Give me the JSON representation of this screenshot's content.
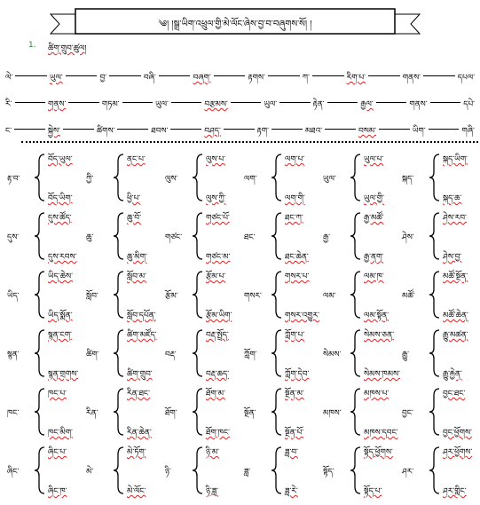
{
  "header": {
    "title": "༄། །སྒྲ་ཡིག་འཕྲུལ་གྱི་མེ་ལོང་ཞེས་བྱ་བ་བཞུགས་སོ། །",
    "number": "1.",
    "subtitle": "ཚིག་གྲུབ་ཚུལ།"
  },
  "chains": [
    [
      "ལེ་",
      "ཡུལ་",
      "བྱ་",
      "བཞི་",
      "བཞག་",
      "རྟགས་",
      "ཀ་",
      "རིག་པ་",
      "གནས་",
      "དཔལ་"
    ],
    [
      "རི་",
      "གནས་",
      "གཏམ་",
      "ཡུལ་",
      "བརྩམས་",
      "ཡུལ་",
      "རྟེན་",
      "རྒྱལ་",
      "གནས་",
      "དཔེ་"
    ],
    [
      "ང་",
      "སྐྱེས་",
      "ཚིགས་",
      "ཐབས་",
      "བཤད་",
      "རྟག་",
      "མཐའ་",
      "བསམ་",
      "ཡིག་",
      "གཞི་"
    ]
  ],
  "groups": [
    [
      [
        "རྟ་བ་",
        "བོད་ཡུལ་",
        "བོད་ཡིག་"
      ],
      [
        "ཀྱི་",
        "ནང་པ་",
        "ཕྱི་པ་"
      ],
      [
        "ལུས་",
        "ལུས་པ་",
        "ལུས་ཀྱི་"
      ],
      [
        "ལག་",
        "ལག་པ་",
        "ལག་གི་"
      ],
      [
        "ཡུལ་",
        "ཡུལ་པ་",
        "ཡུལ་གྱི་"
      ],
      [
        "སྐད་",
        "སྐད་ཡིག་",
        "སྐད་ཆ་"
      ]
    ],
    [
      [
        "དུས་",
        "དུས་ཚོད་",
        "དུས་རབས་"
      ],
      [
        "ཆུ་",
        "ཆུ་བོ་",
        "ཆུ་མིག་"
      ],
      [
        "གཙང་",
        "གཙང་པོ་",
        "གཙང་མ་"
      ],
      [
        "ཐང་",
        "ཐང་ཀ་",
        "ཐང་ཆེན་"
      ],
      [
        "རྒྱ་",
        "རྒྱ་མཚོ་",
        "རྒྱ་ནག་"
      ],
      [
        "ཤེས་",
        "ཤེས་རབ་",
        "ཤེས་བྱ་"
      ]
    ],
    [
      [
        "ཡིད་",
        "ཡིད་ཆེས་",
        "ཡིད་སྨོན་"
      ],
      [
        "སློབ་",
        "སློབ་མ་",
        "སློབ་དཔོན་"
      ],
      [
        "རྩོམ་",
        "རྩོམ་པ་",
        "རྩོམ་ཡིག་"
      ],
      [
        "གསར་",
        "གསར་པ་",
        "གསར་འགྱུར་"
      ],
      [
        "ལམ་",
        "ལམ་ཁ་",
        "ལམ་སྟོན་"
      ],
      [
        "མཚོ་",
        "མཚོ་སྔོན་",
        "མཚོ་ཆེན་"
      ]
    ],
    [
      [
        "སྙན་",
        "སྙན་ངག་",
        "སྙན་གྲགས་"
      ],
      [
        "ཚིག་",
        "ཚིག་མཛོད་",
        "ཚིག་གྲུབ་"
      ],
      [
        "བརྡ་",
        "བརྡ་སྤྲོད་",
        "བརྡ་ཆད་"
      ],
      [
        "ཀློག་",
        "ཀློག་པ་",
        "ཀློག་དེབ་"
      ],
      [
        "སེམས་",
        "སེམས་ཅན་",
        "སེམས་ཁམས་"
      ],
      [
        "རྒྱུ་",
        "རྒྱུ་མཚན་",
        "རྒྱུ་རྐྱེན་"
      ]
    ],
    [
      [
        "ཁང་",
        "ཁང་པ་",
        "ཁང་མིག་"
      ],
      [
        "རིན་",
        "རིན་ཐང་",
        "རིན་ཆེན་"
      ],
      [
        "ཐོག་",
        "ཐོག་མ་",
        "ཐོག་ཁང་"
      ],
      [
        "སྔོན་",
        "སྔོན་མ་",
        "སྔོན་པོ་"
      ],
      [
        "མཁས་",
        "མཁས་པ་",
        "མཁས་དབང་"
      ],
      [
        "བྱང་",
        "བྱང་ཐང་",
        "བྱང་ཕྱོགས་"
      ]
    ],
    [
      [
        "ཞིང་",
        "ཞིང་པ་",
        "ཞིང་ཁ་"
      ],
      [
        "མེ་",
        "མེ་ཏོག་",
        "མེ་ལོང་"
      ],
      [
        "ཉི་",
        "ཉི་མ་",
        "ཉི་ཟླ་"
      ],
      [
        "ཟླ་",
        "ཟླ་བ་",
        "ཟླ་རེ་"
      ],
      [
        "སྟོད་",
        "སྟོད་ཕྱོགས་",
        "སྟོད་པ་"
      ],
      [
        "ཤར་",
        "ཤར་ཕྱོགས་",
        "ཤར་གླིང་"
      ]
    ]
  ]
}
